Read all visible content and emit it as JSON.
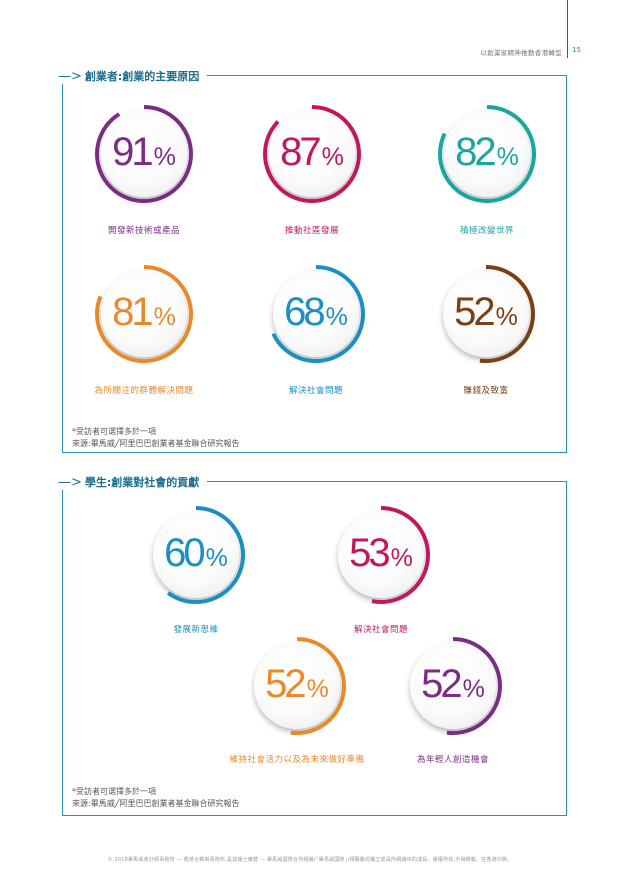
{
  "header": {
    "title": "以創業家精神推動香港轉型",
    "page_number": "15"
  },
  "section1": {
    "title": "創業者:創業的主要原因",
    "stats": [
      {
        "value": "91",
        "unit": "%",
        "fraction": 0.91,
        "color": "#7b2d86",
        "label": "開發新技術或產品"
      },
      {
        "value": "87",
        "unit": "%",
        "fraction": 0.87,
        "color": "#c2185b",
        "label": "推動社區發展"
      },
      {
        "value": "82",
        "unit": "%",
        "fraction": 0.82,
        "color": "#1aa6a0",
        "label": "積極改變世界"
      },
      {
        "value": "81",
        "unit": "%",
        "fraction": 0.81,
        "color": "#e8892a",
        "label": "為所關注的群體解決問題"
      },
      {
        "value": "68",
        "unit": "%",
        "fraction": 0.68,
        "color": "#1a8fc4",
        "label": "解決社會問題"
      },
      {
        "value": "52",
        "unit": "%",
        "fraction": 0.52,
        "color": "#7a3f12",
        "label": "賺錢及致富"
      }
    ],
    "note_line1": "*受訪者可選擇多於一項",
    "note_line2": "來源:畢馬威╱阿里巴巴創業者基金聯合研究報告"
  },
  "section2": {
    "title": "學生:創業對社會的貢獻",
    "stats": [
      {
        "value": "60",
        "unit": "%",
        "fraction": 0.6,
        "color": "#1a8fc4",
        "label": "發展新思維"
      },
      {
        "value": "53",
        "unit": "%",
        "fraction": 0.53,
        "color": "#c2185b",
        "label": "解決社會問題"
      },
      {
        "value": "52",
        "unit": "%",
        "fraction": 0.52,
        "color": "#e8892a",
        "label": "維持社會活力以及為未來做好準備"
      },
      {
        "value": "52",
        "unit": "%",
        "fraction": 0.52,
        "color": "#7b2d86",
        "label": "為年輕人創造機會"
      }
    ],
    "note_line1": "*受訪者可選擇多於一項",
    "note_line2": "來源:畢馬威╱阿里巴巴創業者基金聯合研究報告"
  },
  "footer": "© 2018畢馬威會計師事務所 — 香港合夥制事務所,是與瑞士實體 — 畢馬威國際合作組織(「畢馬威國際」)相關聯的獨立成員所網絡中的成員。版權所有,不得轉載。在香港印刷。"
}
